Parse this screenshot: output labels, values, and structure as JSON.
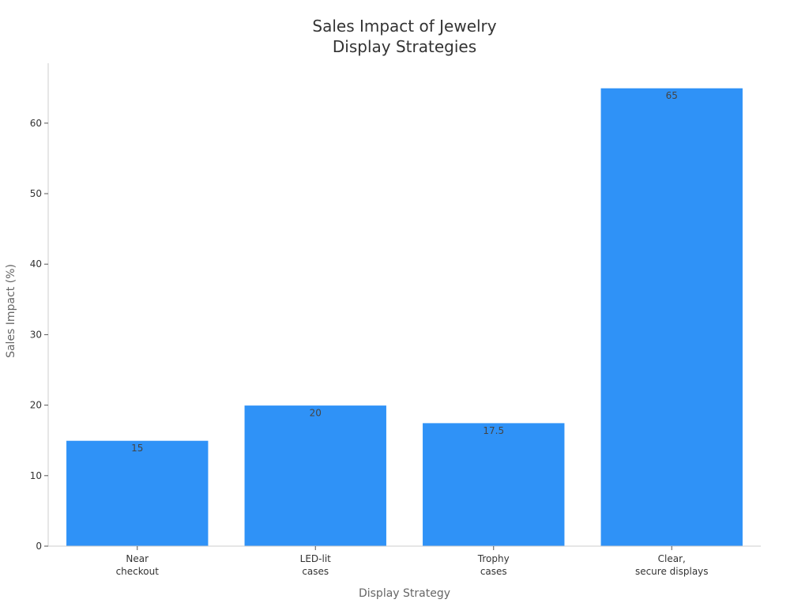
{
  "chart_data": {
    "type": "bar",
    "title_lines": [
      "Sales Impact of Jewelry",
      "Display Strategies"
    ],
    "xlabel": "Display Strategy",
    "ylabel": "Sales Impact (%)",
    "categories": [
      [
        "Near",
        "checkout"
      ],
      [
        "LED-lit",
        "cases"
      ],
      [
        "Trophy",
        "cases"
      ],
      [
        "Clear,",
        "secure displays"
      ]
    ],
    "values": [
      15,
      20,
      17.5,
      65
    ],
    "data_labels": [
      "15",
      "20",
      "17.5",
      "65"
    ],
    "ylim": [
      0,
      68.5
    ],
    "yticks": [
      0,
      10,
      20,
      30,
      40,
      50,
      60
    ],
    "grid": false,
    "legend": "none"
  },
  "colors": {
    "bar": "#2f92f7",
    "bar_edge": "#ffffff",
    "axis": "#cccccc",
    "tick_text": "#333333",
    "axis_label": "#666666",
    "title": "#333333",
    "data_label": "#444444"
  }
}
